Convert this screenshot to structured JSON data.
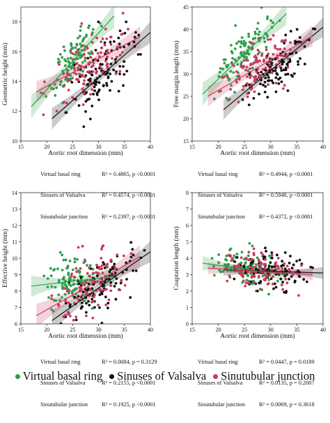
{
  "colors": {
    "vbr": "#2e9e4a",
    "sov": "#111111",
    "stj": "#c93a5e"
  },
  "legend": [
    {
      "key": "vbr",
      "label": "Virtual basal ring"
    },
    {
      "key": "sov",
      "label": "Sinuses of Valsalva"
    },
    {
      "key": "stj",
      "label": "Sinutubular junction"
    }
  ],
  "chart_data": [
    {
      "type": "scatter",
      "xlabel": "Aortic root dimension (mm)",
      "ylabel": "Geometric height (mm)",
      "xlim": [
        15,
        40
      ],
      "ylim": [
        10,
        19
      ],
      "xticks": [
        15,
        20,
        25,
        30,
        35,
        40
      ],
      "yticks": [
        10,
        12,
        14,
        16,
        18
      ],
      "grid": false,
      "series": [
        {
          "name": "Virtual basal ring",
          "key": "vbr",
          "x_range": [
            17.0,
            33.0
          ],
          "fit": [
            [
              17.0,
              12.3
            ],
            [
              33.0,
              18.4
            ]
          ],
          "ci": 0.55,
          "spread": 1.0,
          "n": 110
        },
        {
          "name": "Sinuses of Valsalva",
          "key": "sov",
          "x_range": [
            21.0,
            40.0
          ],
          "fit": [
            [
              21.0,
              11.5
            ],
            [
              40.0,
              17.3
            ]
          ],
          "ci": 0.5,
          "spread": 1.1,
          "n": 110
        },
        {
          "name": "Sinutubular junction",
          "key": "stj",
          "x_range": [
            18.0,
            38.0
          ],
          "fit": [
            [
              18.0,
              13.3
            ],
            [
              38.0,
              17.0
            ]
          ],
          "ci": 0.5,
          "spread": 1.1,
          "n": 110
        }
      ],
      "stats": [
        {
          "label": "Virtual basal ring",
          "text": "R² = 0.4865, p <0.0001"
        },
        {
          "label": "Sinuses of Valsalva",
          "text": "R² = 0.4574, p <0.0001"
        },
        {
          "label": "Sinutubular junction",
          "text": "R² = 0.2397, p <0.0001"
        }
      ]
    },
    {
      "type": "scatter",
      "xlabel": "Aortic root dimension (mm)",
      "ylabel": "Free margin length (mm)",
      "xlim": [
        15,
        40
      ],
      "ylim": [
        15,
        45
      ],
      "xticks": [
        15,
        20,
        25,
        30,
        35,
        40
      ],
      "yticks": [
        15,
        20,
        25,
        30,
        35,
        40,
        45
      ],
      "grid": false,
      "series": [
        {
          "name": "Virtual basal ring",
          "key": "vbr",
          "x_range": [
            17.0,
            33.0
          ],
          "fit": [
            [
              17.0,
              25.5
            ],
            [
              33.0,
              43.5
            ]
          ],
          "ci": 1.8,
          "spread": 3.0,
          "n": 110
        },
        {
          "name": "Sinuses of Valsalva",
          "key": "sov",
          "x_range": [
            21.0,
            40.0
          ],
          "fit": [
            [
              21.0,
              22.0
            ],
            [
              40.0,
              40.5
            ]
          ],
          "ci": 1.5,
          "spread": 3.0,
          "n": 110
        },
        {
          "name": "Sinutubular junction",
          "key": "stj",
          "x_range": [
            18.0,
            38.0
          ],
          "fit": [
            [
              18.0,
              25.0
            ],
            [
              38.0,
              38.5
            ]
          ],
          "ci": 1.6,
          "spread": 3.0,
          "n": 110
        }
      ],
      "stats": [
        {
          "label": "Virtual basal ring",
          "text": "R² = 0.4944, p <0.0001"
        },
        {
          "label": "Sinuses of Valsalva",
          "text": "R² = 0.5940, p <0.0001"
        },
        {
          "label": "Sinutubular junction",
          "text": "R² = 0.4372, p <0.0001"
        }
      ]
    },
    {
      "type": "scatter",
      "xlabel": "Aortic root dimension (mm)",
      "ylabel": "Effective height (mm)",
      "xlim": [
        15,
        40
      ],
      "ylim": [
        6,
        14
      ],
      "xticks": [
        15,
        20,
        25,
        30,
        35,
        40
      ],
      "yticks": [
        6,
        7,
        8,
        9,
        10,
        11,
        12,
        13,
        14
      ],
      "grid": false,
      "series": [
        {
          "name": "Virtual basal ring",
          "key": "vbr",
          "x_range": [
            17.0,
            33.0
          ],
          "fit": [
            [
              17.0,
              8.3
            ],
            [
              33.0,
              8.9
            ]
          ],
          "ci": 0.45,
          "spread": 0.9,
          "n": 110
        },
        {
          "name": "Sinuses of Valsalva",
          "key": "sov",
          "x_range": [
            21.0,
            40.0
          ],
          "fit": [
            [
              21.0,
              6.2
            ],
            [
              40.0,
              10.4
            ]
          ],
          "ci": 0.45,
          "spread": 0.9,
          "n": 110
        },
        {
          "name": "Sinutubular junction",
          "key": "stj",
          "x_range": [
            18.0,
            38.0
          ],
          "fit": [
            [
              18.0,
              6.5
            ],
            [
              38.0,
              10.1
            ]
          ],
          "ci": 0.5,
          "spread": 0.9,
          "n": 110
        }
      ],
      "stats": [
        {
          "label": "Virtual basal ring",
          "text": "R² = 0.0084, p = 0.3129"
        },
        {
          "label": "Sinuses of Valsalva",
          "text": "R² = 0.2155, p <0.0001"
        },
        {
          "label": "Sinutubular junction",
          "text": "R² = 0.1925, p <0.0001"
        }
      ]
    },
    {
      "type": "scatter",
      "xlabel": "Aortic root dimension (mm)",
      "ylabel": "Coaptation length (mm)",
      "xlim": [
        15,
        40
      ],
      "ylim": [
        0,
        8
      ],
      "xticks": [
        15,
        20,
        25,
        30,
        35,
        40
      ],
      "yticks": [
        0,
        1,
        2,
        3,
        4,
        5,
        6,
        7,
        8
      ],
      "grid": false,
      "series": [
        {
          "name": "Virtual basal ring",
          "key": "vbr",
          "x_range": [
            17.0,
            33.0
          ],
          "fit": [
            [
              17.0,
              3.7
            ],
            [
              33.0,
              3.0
            ]
          ],
          "ci": 0.3,
          "spread": 0.6,
          "n": 110
        },
        {
          "name": "Sinuses of Valsalva",
          "key": "sov",
          "x_range": [
            21.0,
            40.0
          ],
          "fit": [
            [
              21.0,
              3.3
            ],
            [
              40.0,
              3.1
            ]
          ],
          "ci": 0.25,
          "spread": 0.6,
          "n": 110
        },
        {
          "name": "Sinutubular junction",
          "key": "stj",
          "x_range": [
            18.0,
            38.0
          ],
          "fit": [
            [
              18.0,
              3.4
            ],
            [
              38.0,
              3.0
            ]
          ],
          "ci": 0.25,
          "spread": 0.6,
          "n": 110
        }
      ],
      "stats": [
        {
          "label": "Virtual basal ring",
          "text": "R² = 0.0447, p = 0.0189"
        },
        {
          "label": "Sinuses of Valsalva",
          "text": "R² = 0.0135, p = 0.2007"
        },
        {
          "label": "Sinutubular junction",
          "text": "R² = 0.0069, p = 0.3618"
        }
      ]
    }
  ]
}
